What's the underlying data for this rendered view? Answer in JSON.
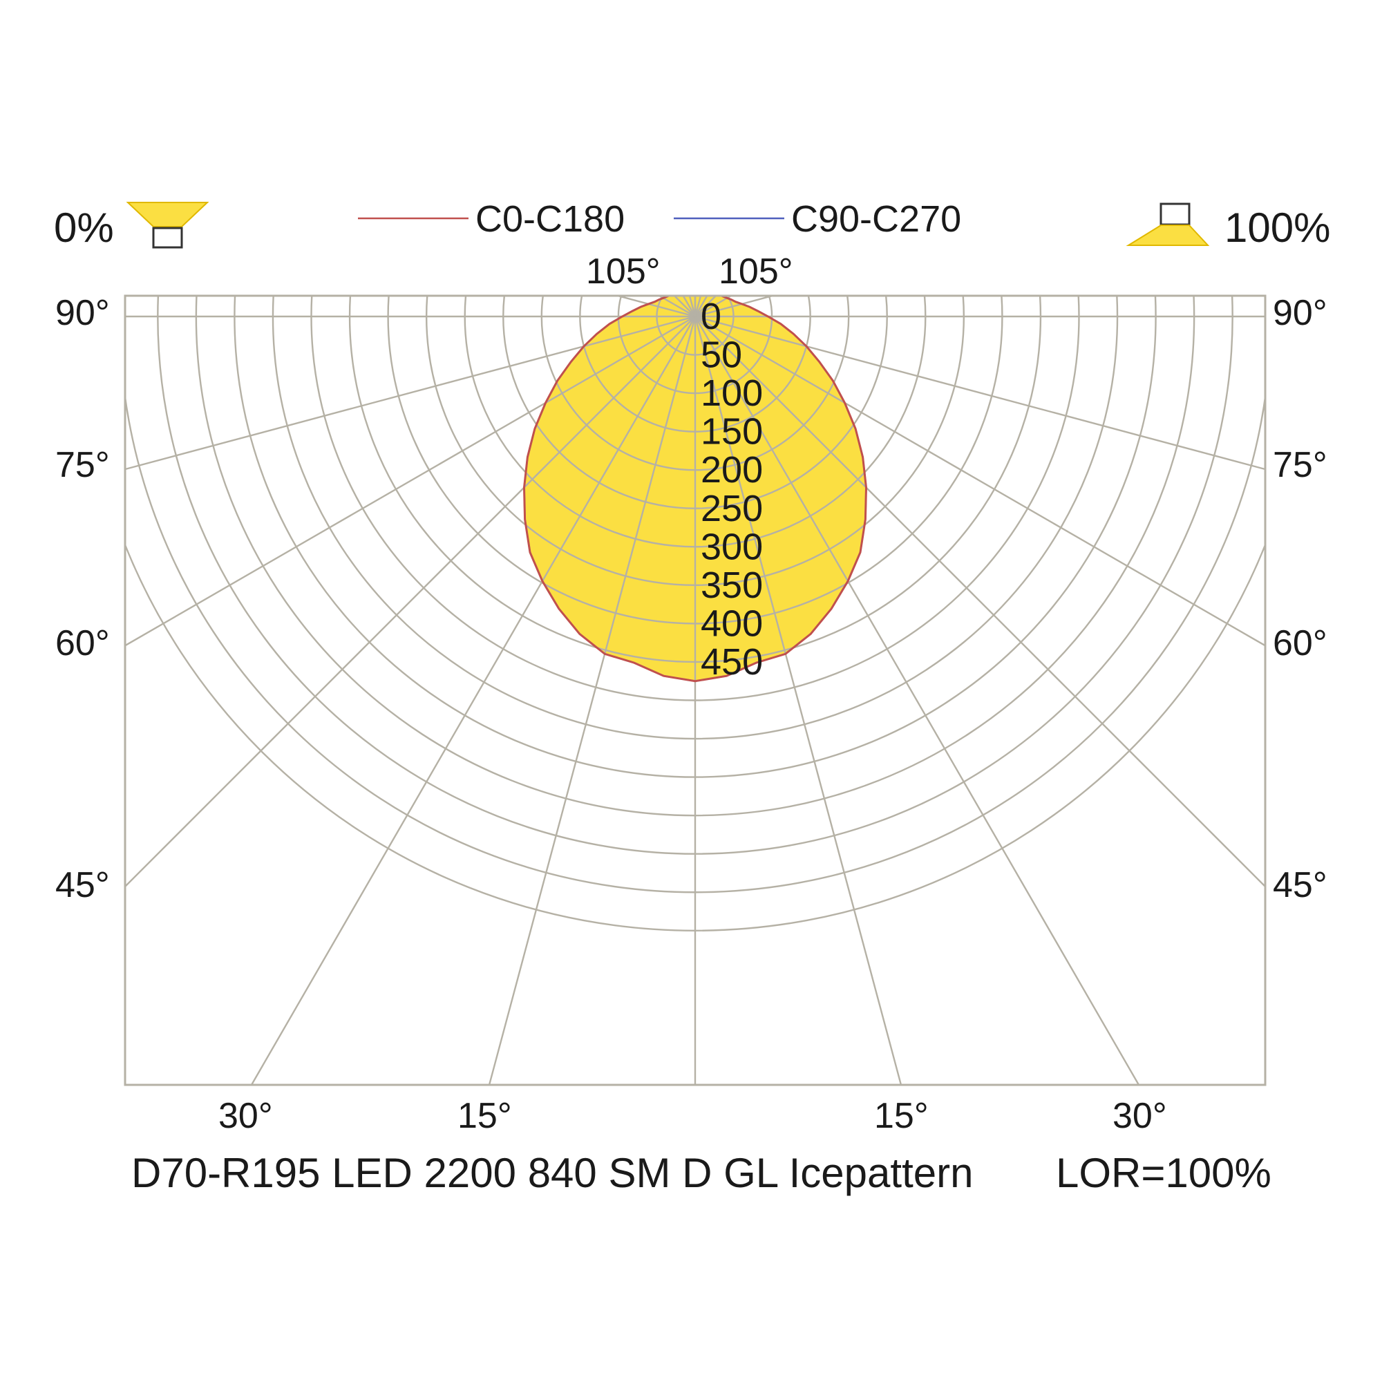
{
  "chart_data": {
    "type": "polar",
    "title": "D70-R195 LED 2200 840 SM D GL Icepattern",
    "lor": "LOR=100%",
    "legend": {
      "downlight": "0%",
      "uplight": "100%",
      "series_names": [
        "C0-C180",
        "C90-C270"
      ]
    },
    "radial_ticks": [
      "0",
      "50",
      "100",
      "150",
      "200",
      "250",
      "300",
      "350",
      "400",
      "450"
    ],
    "angle_labels": {
      "top": [
        "105°",
        "105°"
      ],
      "left": [
        "90°",
        "75°",
        "60°",
        "45°"
      ],
      "right": [
        "90°",
        "75°",
        "60°",
        "45°"
      ],
      "bottom": [
        "30°",
        "15°",
        "15°",
        "30°"
      ]
    },
    "series": [
      {
        "name": "C0-C180",
        "color": "#c0504d",
        "gamma": [
          0,
          5,
          10,
          15,
          20,
          25,
          30,
          35,
          40,
          45,
          50,
          55,
          60,
          65,
          70,
          75,
          80,
          85,
          90,
          95,
          100,
          105,
          110,
          115,
          120,
          125,
          130,
          135,
          140,
          145,
          150,
          155,
          160,
          165,
          170,
          175,
          180
        ],
        "intensity": [
          475,
          470,
          458,
          455,
          440,
          420,
          398,
          375,
          345,
          315,
          285,
          255,
          225,
          198,
          172,
          150,
          130,
          112,
          95,
          82,
          72,
          63,
          56,
          52,
          48,
          45,
          43,
          41,
          40,
          39,
          38,
          38,
          38,
          37,
          37,
          37,
          37
        ]
      },
      {
        "name": "C90-C270",
        "color": "#4f5fbd",
        "gamma": [
          0,
          5,
          10,
          15,
          20,
          25,
          30,
          35,
          40,
          45,
          50,
          55,
          60,
          65,
          70,
          75,
          80,
          85,
          90,
          95,
          100,
          105,
          110,
          115,
          120,
          125,
          130,
          135,
          140,
          145,
          150,
          155,
          160,
          165,
          170,
          175,
          180
        ],
        "intensity": [
          475,
          470,
          458,
          455,
          440,
          420,
          398,
          375,
          345,
          315,
          285,
          255,
          225,
          198,
          172,
          150,
          130,
          112,
          95,
          82,
          72,
          63,
          56,
          52,
          48,
          45,
          43,
          41,
          40,
          39,
          38,
          38,
          38,
          37,
          37,
          37,
          37
        ]
      }
    ],
    "fill_color": "#fbdf42",
    "outline_color": "#c0504d",
    "rmax": 475
  }
}
